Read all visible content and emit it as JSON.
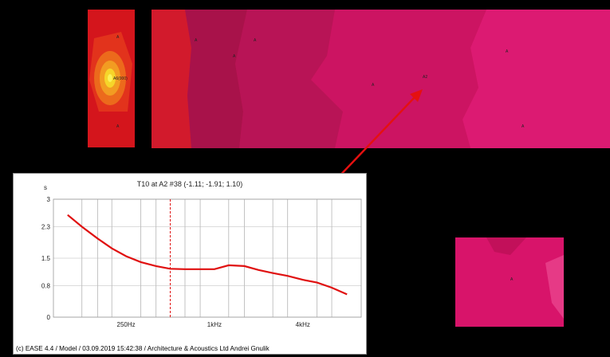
{
  "plan": {
    "left_zone_marker": "A6(000)",
    "point_label": "A2"
  },
  "inset": {
    "title": "T10 at A2 #38  (-1.11; -1.91; 1.10)",
    "unit": "s",
    "footer": "(c) EASE 4.4  / Model  / 03.09.2019 15:42:38 / Architecture & Acoustics Ltd Andrei Gnulik"
  },
  "chart_data": {
    "type": "line",
    "title": "T10 at A2 #38  (-1.11; -1.91; 1.10)",
    "ylabel": "s",
    "ylim": [
      0,
      3
    ],
    "y_ticks": [
      "0",
      "0.8",
      "1.5",
      "2.3",
      "3"
    ],
    "x_ticks": [
      "250Hz",
      "1kHz",
      "4kHz"
    ],
    "x_scale": "log",
    "series": [
      {
        "color": "#e01010",
        "x": [
          100,
          125,
          160,
          200,
          250,
          315,
          400,
          500,
          630,
          800,
          1000,
          1250,
          1600,
          2000,
          2500,
          3150,
          4000,
          5000,
          6300,
          8000
        ],
        "values": [
          2.6,
          2.3,
          2.0,
          1.75,
          1.55,
          1.4,
          1.3,
          1.23,
          1.22,
          1.22,
          1.22,
          1.32,
          1.3,
          1.2,
          1.12,
          1.05,
          0.95,
          0.88,
          0.75,
          0.58
        ]
      }
    ]
  }
}
